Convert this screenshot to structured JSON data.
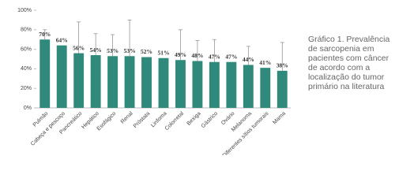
{
  "chart_data": {
    "type": "bar",
    "title": "Gráfico 1. Prevalência de sarcopenia em pacientes com câncer de acordo com a localização do tumor primário na literatura",
    "categories": [
      "Pulmão",
      "Cabeça e pescoço",
      "Pancreático",
      "Hepático",
      "Esofágico",
      "Renal",
      "Próstata",
      "Linfoma",
      "Colorretal",
      "Bexiga",
      "Gástrico",
      "Ovário",
      "Melanoma",
      "Diferentes sítios tumorais",
      "Mama"
    ],
    "values": [
      70,
      64,
      56,
      54,
      53,
      53,
      52,
      51,
      49,
      48,
      47,
      47,
      44,
      41,
      38
    ],
    "value_labels": [
      "70%",
      "64%",
      "56%",
      "54%",
      "53%",
      "53%",
      "52%",
      "51%",
      "49%",
      "48%",
      "47%",
      "47%",
      "44%",
      "41%",
      "38%"
    ],
    "errors": [
      10,
      null,
      32,
      22,
      22,
      37,
      null,
      null,
      31,
      21,
      23,
      null,
      19,
      null,
      29
    ],
    "color": "#2f8a7b",
    "ylim": [
      0,
      100
    ],
    "yticks": [
      {
        "value": 0,
        "label": "0%"
      },
      {
        "value": 20,
        "label": "20%"
      },
      {
        "value": 40,
        "label": "40%"
      },
      {
        "value": 60,
        "label": "60%"
      },
      {
        "value": 80,
        "label": "80%"
      },
      {
        "value": 100,
        "label": "100%"
      }
    ],
    "grid": false
  }
}
